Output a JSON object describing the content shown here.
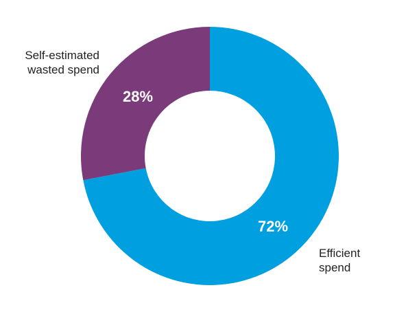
{
  "chart_data": {
    "type": "pie",
    "donut": true,
    "title": "",
    "slices": [
      {
        "label": "Efficient spend",
        "label_lines": [
          "Efficient",
          "spend"
        ],
        "value": 72,
        "value_label": "72%",
        "color": "#009fe0"
      },
      {
        "label": "Self-estimated wasted spend",
        "label_lines": [
          "Self-estimated",
          "wasted spend"
        ],
        "value": 28,
        "value_label": "28%",
        "color": "#7b3b7a"
      }
    ],
    "start_angle": "12 o'clock",
    "direction": "clockwise",
    "legend": "none"
  }
}
